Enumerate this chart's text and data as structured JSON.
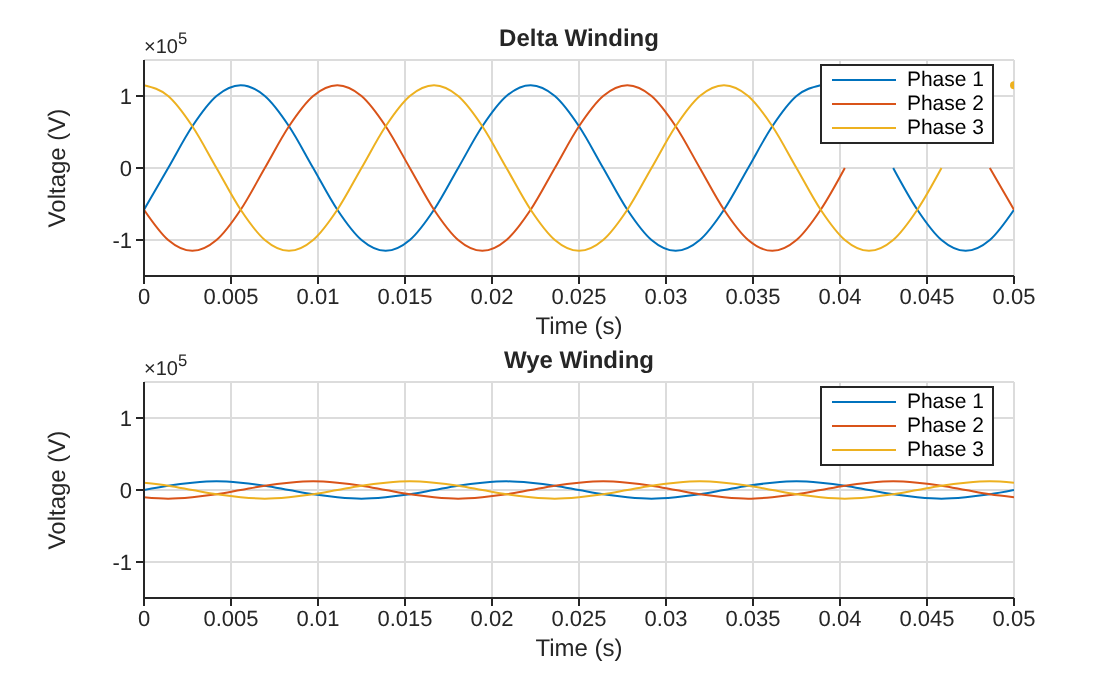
{
  "chart_data": [
    {
      "type": "line",
      "title": "Delta Winding",
      "xlabel": "Time (s)",
      "ylabel": "Voltage (V)",
      "annotations": [
        "×10$^{5}$"
      ],
      "x": [
        0,
        0.001389,
        0.002778,
        0.004167,
        0.005556,
        0.006944,
        0.008333,
        0.009722,
        0.011111,
        0.0125,
        0.013889,
        0.015278,
        0.016667,
        0.018056,
        0.019444,
        0.020833,
        0.022222,
        0.023611,
        0.025,
        0.026389,
        0.027778,
        0.029167,
        0.030556,
        0.031944,
        0.033333,
        0.034722,
        0.036111,
        0.0375,
        0.038889,
        0.040278,
        0.041667,
        0.043056,
        0.044444,
        0.045833,
        0.047222,
        0.048611,
        0.05
      ],
      "series": [
        {
          "name": "Phase 1",
          "color": "#0072bd",
          "values": [
            -0.58,
            0,
            0.58,
            1.0,
            1.15,
            1.0,
            0.58,
            0,
            -0.58,
            -1.0,
            -1.15,
            -1.0,
            -0.58,
            0,
            0.58,
            1.0,
            1.15,
            1.0,
            0.58,
            0,
            -0.58,
            -1.0,
            -1.15,
            -1.0,
            -0.58,
            0,
            0.58,
            1.0,
            1.15,
            null,
            null,
            0,
            -0.58,
            -1.0,
            -1.15,
            -1.0,
            -0.58
          ]
        },
        {
          "name": "Phase 2",
          "color": "#d95319",
          "values": [
            -0.58,
            -1.0,
            -1.15,
            -1.0,
            -0.58,
            0,
            0.58,
            1.0,
            1.15,
            1.0,
            0.58,
            0,
            -0.58,
            -1.0,
            -1.15,
            -1.0,
            -0.58,
            0,
            0.58,
            1.0,
            1.15,
            1.0,
            0.58,
            0,
            -0.58,
            -1.0,
            -1.15,
            -1.0,
            -0.58,
            0,
            null,
            null,
            null,
            null,
            null,
            0,
            -0.58
          ]
        },
        {
          "name": "Phase 3",
          "color": "#edb120",
          "values": [
            1.15,
            1.0,
            0.58,
            0,
            -0.58,
            -1.0,
            -1.15,
            -1.0,
            -0.58,
            0,
            0.58,
            1.0,
            1.15,
            1.0,
            0.58,
            0,
            -0.58,
            -1.0,
            -1.15,
            -1.0,
            -0.58,
            0,
            0.58,
            1.0,
            1.15,
            1.0,
            0.58,
            0,
            -0.58,
            -1.0,
            -1.15,
            -1.0,
            -0.58,
            0,
            null,
            null,
            1.15
          ]
        }
      ],
      "xlim": [
        0,
        0.05
      ],
      "xticks": [
        0,
        0.005,
        0.01,
        0.015,
        0.02,
        0.025,
        0.03,
        0.035,
        0.04,
        0.045,
        0.05
      ],
      "ylim": [
        -1.5,
        1.5
      ],
      "yticks": [
        -1,
        0,
        1
      ],
      "grid": true,
      "legend": "top right",
      "marker": "none",
      "line_style": "solid"
    },
    {
      "type": "line",
      "title": "Wye Winding",
      "xlabel": "Time (s)",
      "ylabel": "Voltage (V)",
      "annotations": [
        "×10$^{5}$"
      ],
      "x": [
        0,
        0.001389,
        0.002778,
        0.004167,
        0.005556,
        0.006944,
        0.008333,
        0.009722,
        0.011111,
        0.0125,
        0.013889,
        0.015278,
        0.016667,
        0.018056,
        0.019444,
        0.020833,
        0.022222,
        0.023611,
        0.025,
        0.026389,
        0.027778,
        0.029167,
        0.030556,
        0.031944,
        0.033333,
        0.034722,
        0.036111,
        0.0375,
        0.038889,
        0.040278,
        0.041667,
        0.043056,
        0.044444,
        0.045833,
        0.047222,
        0.048611,
        0.05
      ],
      "series": [
        {
          "name": "Phase 1",
          "color": "#0072bd",
          "values": [
            0,
            0.06,
            0.1,
            0.12,
            0.1,
            0.06,
            0,
            -0.06,
            -0.1,
            -0.12,
            -0.1,
            -0.06,
            0,
            0.06,
            0.1,
            0.12,
            0.1,
            0.06,
            0,
            -0.06,
            -0.1,
            -0.12,
            -0.1,
            -0.06,
            0,
            0.06,
            0.1,
            0.12,
            0.1,
            0.06,
            0,
            -0.06,
            -0.1,
            -0.12,
            -0.1,
            -0.06,
            0
          ]
        },
        {
          "name": "Phase 2",
          "color": "#d95319",
          "values": [
            -0.1,
            -0.12,
            -0.1,
            -0.06,
            0,
            0.06,
            0.1,
            0.12,
            0.1,
            0.06,
            0,
            -0.06,
            -0.1,
            -0.12,
            -0.1,
            -0.06,
            0,
            0.06,
            0.1,
            0.12,
            0.1,
            0.06,
            0,
            -0.06,
            -0.1,
            -0.12,
            -0.1,
            -0.06,
            0,
            0.06,
            0.1,
            0.12,
            0.1,
            0.06,
            0,
            -0.06,
            -0.1
          ]
        },
        {
          "name": "Phase 3",
          "color": "#edb120",
          "values": [
            0.1,
            0.06,
            0,
            -0.06,
            -0.1,
            -0.12,
            -0.1,
            -0.06,
            0,
            0.06,
            0.1,
            0.12,
            0.1,
            0.06,
            0,
            -0.06,
            -0.1,
            -0.12,
            -0.1,
            -0.06,
            0,
            0.06,
            0.1,
            0.12,
            0.1,
            0.06,
            0,
            -0.06,
            -0.1,
            -0.12,
            -0.1,
            -0.06,
            0,
            0.06,
            0.1,
            0.12,
            0.1
          ]
        }
      ],
      "xlim": [
        0,
        0.05
      ],
      "xticks": [
        0,
        0.005,
        0.01,
        0.015,
        0.02,
        0.025,
        0.03,
        0.035,
        0.04,
        0.045,
        0.05
      ],
      "ylim": [
        -1.5,
        1.5
      ],
      "yticks": [
        -1,
        0,
        1
      ],
      "grid": true,
      "legend": "top right",
      "marker": "none",
      "line_style": "solid"
    }
  ]
}
